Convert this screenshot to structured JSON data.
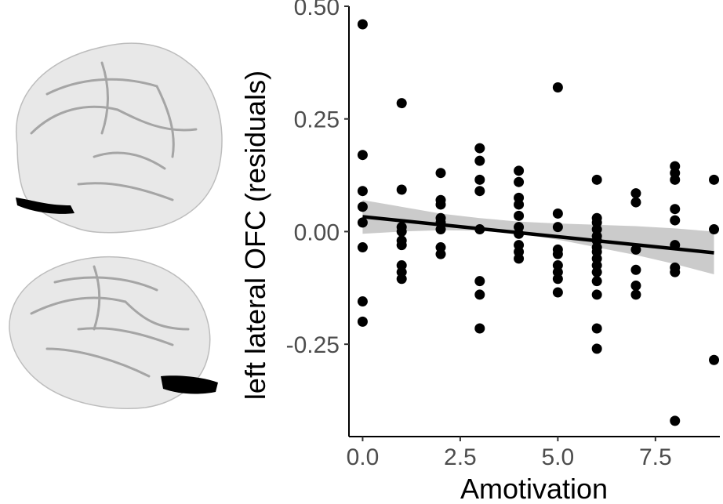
{
  "brain_images": {
    "top_view_icon": "brain-lateral-left-icon",
    "bottom_view_icon": "brain-lateral-right-icon",
    "highlight_region": "left lateral OFC"
  },
  "colors": {
    "points": "#000000",
    "fit_line": "#000000",
    "ci_band": "#bebebe",
    "tick_text": "#4d4d4d",
    "brain_surface": "#e8e8e8",
    "brain_highlight": "#000000"
  },
  "chart_data": {
    "type": "scatter",
    "title": "",
    "xlabel": "Amotivation",
    "ylabel": "left lateral OFC (residuals)",
    "xlim": [
      -0.35,
      9.15
    ],
    "ylim": [
      -0.455,
      0.5
    ],
    "xticks": [
      0,
      2.5,
      5,
      7.5
    ],
    "xtick_labels": [
      "0.0",
      "2.5",
      "5.0",
      "7.5"
    ],
    "yticks": [
      0.5,
      0.25,
      0,
      -0.25
    ],
    "ytick_labels": [
      "0.50",
      "0.25",
      "0.00",
      "-0.25"
    ],
    "grid": false,
    "legend": "none",
    "points": [
      {
        "x": 0,
        "y": 0.46
      },
      {
        "x": 0,
        "y": 0.17
      },
      {
        "x": 0,
        "y": 0.09
      },
      {
        "x": 0,
        "y": 0.055
      },
      {
        "x": 0,
        "y": 0.02
      },
      {
        "x": 0,
        "y": -0.035
      },
      {
        "x": 0,
        "y": -0.155
      },
      {
        "x": 0,
        "y": -0.2
      },
      {
        "x": 1,
        "y": 0.285
      },
      {
        "x": 1,
        "y": 0.093
      },
      {
        "x": 1,
        "y": 0.01
      },
      {
        "x": 1,
        "y": 0.0
      },
      {
        "x": 1,
        "y": -0.02
      },
      {
        "x": 1,
        "y": -0.03
      },
      {
        "x": 1,
        "y": -0.075
      },
      {
        "x": 1,
        "y": -0.09
      },
      {
        "x": 1,
        "y": -0.105
      },
      {
        "x": 2,
        "y": 0.13
      },
      {
        "x": 2,
        "y": 0.07
      },
      {
        "x": 2,
        "y": 0.06
      },
      {
        "x": 2,
        "y": 0.03
      },
      {
        "x": 2,
        "y": 0.02
      },
      {
        "x": 2,
        "y": 0.005
      },
      {
        "x": 2,
        "y": -0.035
      },
      {
        "x": 2,
        "y": -0.05
      },
      {
        "x": 3,
        "y": 0.185
      },
      {
        "x": 3,
        "y": 0.157
      },
      {
        "x": 3,
        "y": 0.115
      },
      {
        "x": 3,
        "y": 0.09
      },
      {
        "x": 3,
        "y": 0.005
      },
      {
        "x": 3,
        "y": -0.11
      },
      {
        "x": 3,
        "y": -0.14
      },
      {
        "x": 3,
        "y": -0.215
      },
      {
        "x": 4,
        "y": 0.135
      },
      {
        "x": 4,
        "y": 0.11
      },
      {
        "x": 4,
        "y": 0.075
      },
      {
        "x": 4,
        "y": 0.06
      },
      {
        "x": 4,
        "y": 0.035
      },
      {
        "x": 4,
        "y": 0.01
      },
      {
        "x": 4,
        "y": -0.005
      },
      {
        "x": 4,
        "y": -0.03
      },
      {
        "x": 4,
        "y": -0.045
      },
      {
        "x": 4,
        "y": -0.06
      },
      {
        "x": 5,
        "y": 0.32
      },
      {
        "x": 5,
        "y": 0.04
      },
      {
        "x": 5,
        "y": 0.01
      },
      {
        "x": 5,
        "y": -0.04
      },
      {
        "x": 5,
        "y": -0.05
      },
      {
        "x": 5,
        "y": -0.075
      },
      {
        "x": 5,
        "y": -0.09
      },
      {
        "x": 5,
        "y": -0.105
      },
      {
        "x": 5,
        "y": -0.135
      },
      {
        "x": 6,
        "y": 0.115
      },
      {
        "x": 6,
        "y": 0.03
      },
      {
        "x": 6,
        "y": 0.02
      },
      {
        "x": 6,
        "y": 0.005
      },
      {
        "x": 6,
        "y": -0.01
      },
      {
        "x": 6,
        "y": -0.02
      },
      {
        "x": 6,
        "y": -0.035
      },
      {
        "x": 6,
        "y": -0.045
      },
      {
        "x": 6,
        "y": -0.06
      },
      {
        "x": 6,
        "y": -0.075
      },
      {
        "x": 6,
        "y": -0.09
      },
      {
        "x": 6,
        "y": -0.11
      },
      {
        "x": 6,
        "y": -0.14
      },
      {
        "x": 6,
        "y": -0.215
      },
      {
        "x": 6,
        "y": -0.26
      },
      {
        "x": 7,
        "y": 0.085
      },
      {
        "x": 7,
        "y": 0.065
      },
      {
        "x": 7,
        "y": -0.04
      },
      {
        "x": 7,
        "y": -0.085
      },
      {
        "x": 7,
        "y": -0.12
      },
      {
        "x": 7,
        "y": -0.14
      },
      {
        "x": 8,
        "y": 0.145
      },
      {
        "x": 8,
        "y": 0.13
      },
      {
        "x": 8,
        "y": 0.115
      },
      {
        "x": 8,
        "y": 0.05
      },
      {
        "x": 8,
        "y": 0.025
      },
      {
        "x": 8,
        "y": -0.03
      },
      {
        "x": 8,
        "y": -0.08
      },
      {
        "x": 8,
        "y": -0.09
      },
      {
        "x": 8,
        "y": -0.42
      },
      {
        "x": 9,
        "y": 0.115
      },
      {
        "x": 9,
        "y": 0.005
      },
      {
        "x": 9,
        "y": -0.285
      }
    ],
    "fit_line": {
      "x": [
        0,
        9
      ],
      "y": [
        0.033,
        -0.047
      ]
    },
    "ci_band": {
      "x": [
        0,
        1,
        2,
        3,
        4,
        5,
        6,
        7,
        8,
        9
      ],
      "upper": [
        0.07,
        0.055,
        0.04,
        0.03,
        0.022,
        0.018,
        0.015,
        0.012,
        0.007,
        0.0
      ],
      "lower": [
        -0.005,
        0.0,
        0.003,
        0.002,
        -0.005,
        -0.018,
        -0.035,
        -0.052,
        -0.072,
        -0.095
      ]
    }
  }
}
